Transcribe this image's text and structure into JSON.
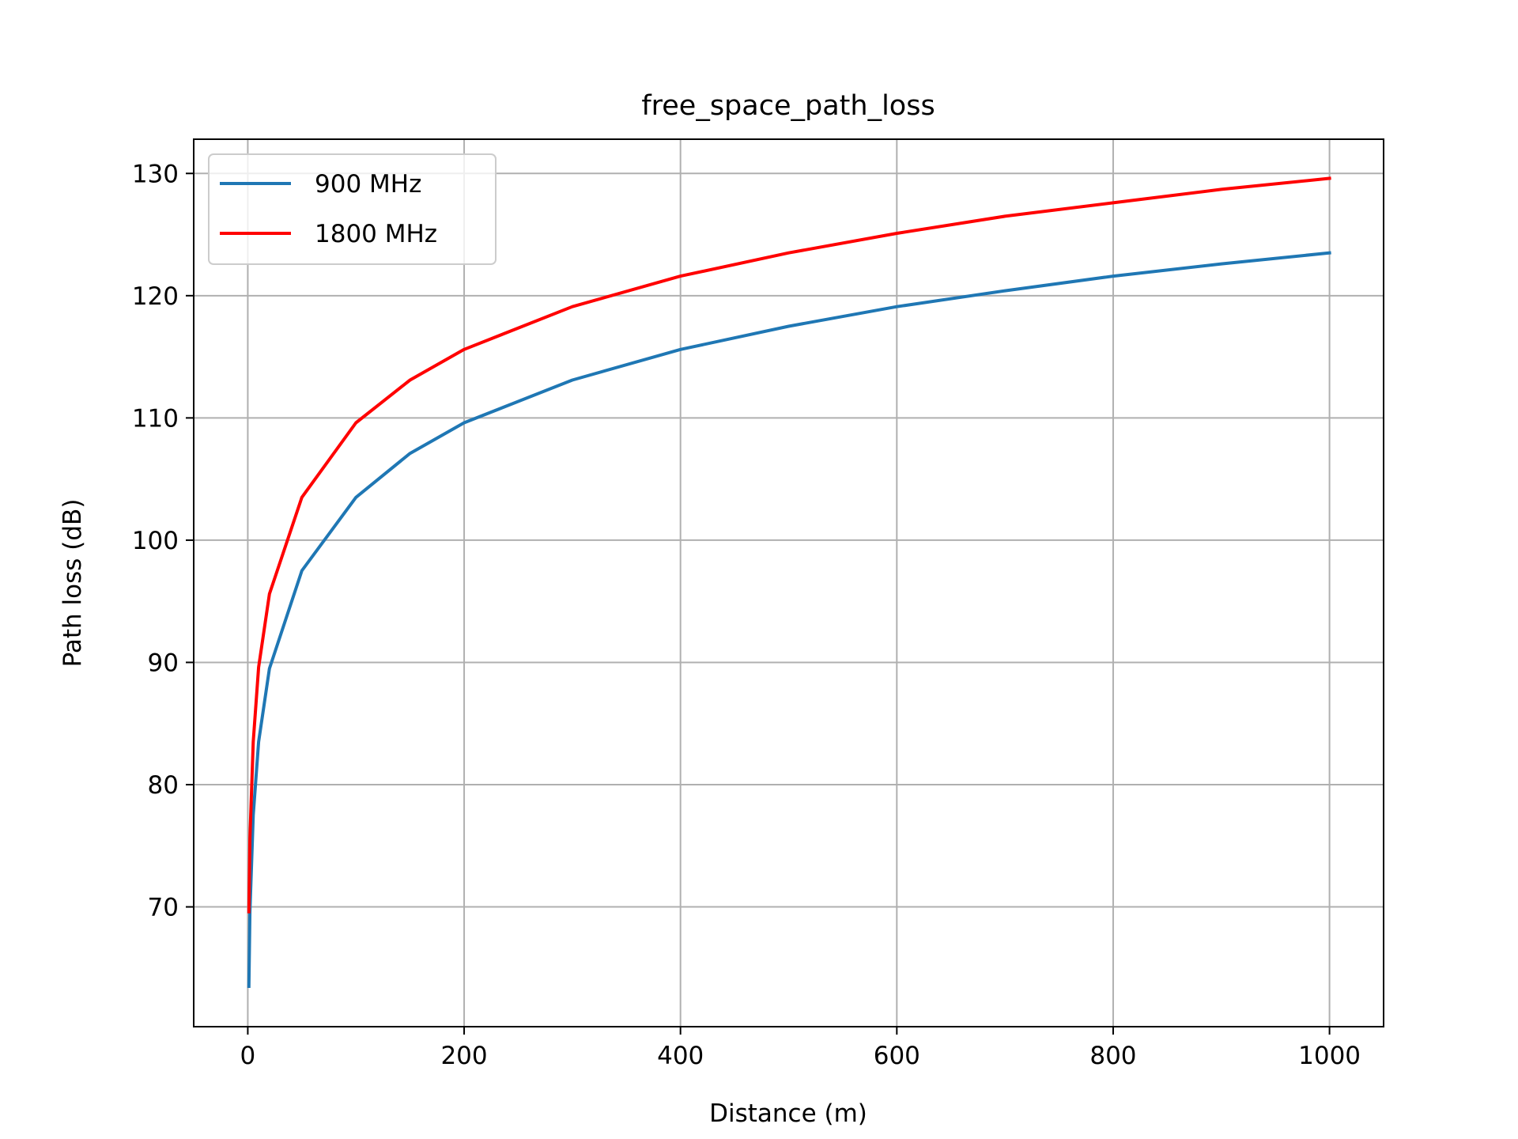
{
  "chart_data": {
    "type": "line",
    "title": "free_space_path_loss",
    "xlabel": "Distance (m)",
    "ylabel": "Path loss (dB)",
    "xlim": [
      -50,
      1050
    ],
    "ylim": [
      60.2,
      132.8
    ],
    "xticks": [
      0,
      200,
      400,
      600,
      800,
      1000
    ],
    "yticks": [
      70,
      80,
      90,
      100,
      110,
      120,
      130
    ],
    "grid": true,
    "legend_position": "upper left",
    "x": [
      1,
      2,
      5,
      10,
      20,
      50,
      100,
      150,
      200,
      300,
      400,
      500,
      600,
      700,
      800,
      900,
      1000
    ],
    "series": [
      {
        "name": "900 MHz",
        "color": "#1f77b4",
        "values": [
          63.5,
          69.6,
          77.5,
          83.5,
          89.5,
          97.5,
          103.5,
          107.1,
          109.6,
          113.1,
          115.6,
          117.5,
          119.1,
          120.4,
          121.6,
          122.6,
          123.5
        ]
      },
      {
        "name": "1800 MHz",
        "color": "#ff0000",
        "values": [
          69.6,
          75.6,
          83.5,
          89.6,
          95.6,
          103.5,
          109.6,
          113.1,
          115.6,
          119.1,
          121.6,
          123.5,
          125.1,
          126.5,
          127.6,
          128.7,
          129.6
        ]
      }
    ]
  }
}
